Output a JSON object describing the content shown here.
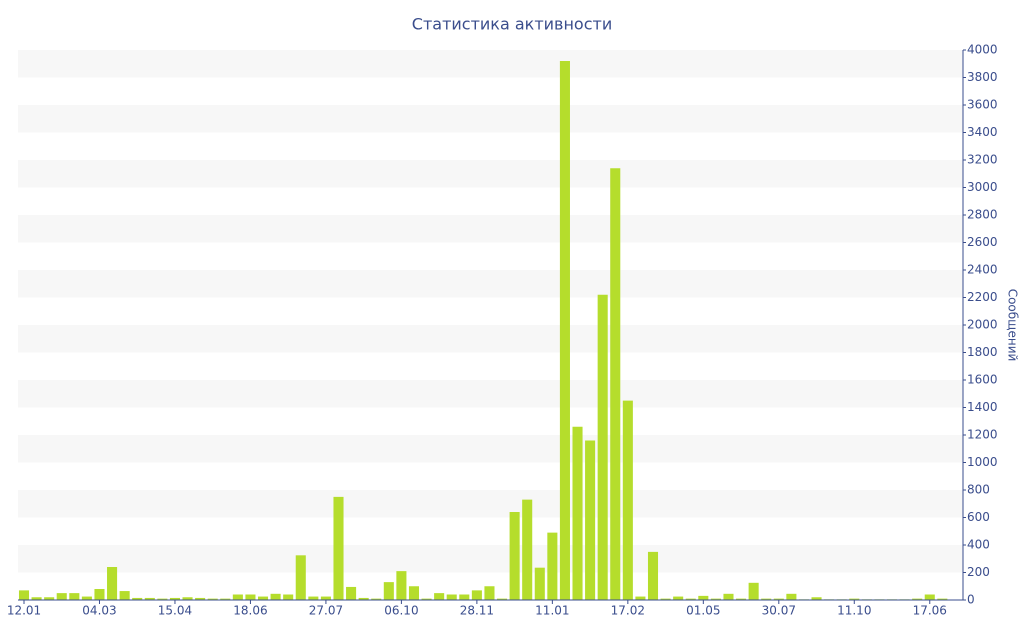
{
  "chart_data": {
    "type": "bar",
    "title": "Статистика активности",
    "y_label": "Сообщений",
    "categories": [
      "12.01",
      null,
      null,
      null,
      null,
      null,
      "04.03",
      null,
      null,
      null,
      null,
      null,
      "15.04",
      null,
      null,
      null,
      null,
      null,
      "18.06",
      null,
      null,
      null,
      null,
      null,
      "27.07",
      null,
      null,
      null,
      null,
      null,
      "06.10",
      null,
      null,
      null,
      null,
      null,
      "28.11",
      null,
      null,
      null,
      null,
      null,
      "11.01",
      null,
      null,
      null,
      null,
      null,
      "17.02",
      null,
      null,
      null,
      null,
      null,
      "01.05",
      null,
      null,
      null,
      null,
      null,
      "30.07",
      null,
      null,
      null,
      null,
      null,
      "11.10",
      null,
      null,
      null,
      null,
      null,
      "17.06",
      null
    ],
    "values": [
      70,
      20,
      20,
      50,
      50,
      25,
      80,
      240,
      65,
      15,
      15,
      10,
      15,
      20,
      15,
      10,
      10,
      40,
      40,
      25,
      45,
      40,
      325,
      25,
      25,
      750,
      95,
      15,
      10,
      130,
      210,
      100,
      10,
      50,
      40,
      40,
      70,
      100,
      10,
      640,
      730,
      235,
      490,
      3920,
      1260,
      1160,
      2220,
      3140,
      1450,
      25,
      350,
      10,
      25,
      10,
      30,
      10,
      45,
      10,
      125,
      10,
      10,
      45,
      5,
      20,
      5,
      5,
      10,
      5,
      5,
      5,
      5,
      10,
      40,
      10
    ],
    "color": "#b5dd2c",
    "ylim": [
      0,
      4000
    ],
    "yticks": [
      0,
      200,
      400,
      600,
      800,
      1000,
      1200,
      1400,
      1600,
      1800,
      2000,
      2200,
      2400,
      2600,
      2800,
      3000,
      3200,
      3400,
      3600,
      3800,
      4000
    ],
    "y_axis_side": "right",
    "grid": "stripes"
  }
}
